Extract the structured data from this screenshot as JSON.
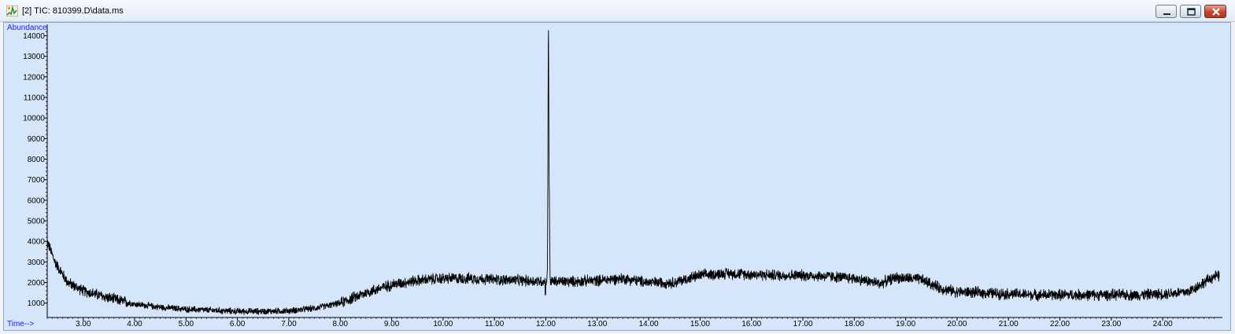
{
  "window": {
    "title": "[2] TIC: 810399.D\\data.ms",
    "icon": "chromatogram-app-icon",
    "buttons": [
      "minimize",
      "restore",
      "close"
    ]
  },
  "colors": {
    "plot_background": "#d6e6fa",
    "trace": "#000000",
    "axis_title": "#1a1aff"
  },
  "chart_data": {
    "type": "line",
    "ylabel": "Abundance",
    "xlabel": "Time-->",
    "xlim": [
      2.3,
      25.1
    ],
    "ylim": [
      300,
      14400
    ],
    "x_ticks": [
      "3.00",
      "4.00",
      "5.00",
      "6.00",
      "7.00",
      "8.00",
      "9.00",
      "10.00",
      "11.00",
      "12.00",
      "13.00",
      "14.00",
      "15.00",
      "16.00",
      "17.00",
      "18.00",
      "19.00",
      "20.00",
      "21.00",
      "22.00",
      "23.00",
      "24.00"
    ],
    "y_ticks": [
      "1000",
      "2000",
      "3000",
      "4000",
      "5000",
      "6000",
      "7000",
      "8000",
      "9000",
      "10000",
      "11000",
      "12000",
      "13000",
      "14000"
    ],
    "grid": false,
    "baseline": [
      [
        2.3,
        4000
      ],
      [
        2.45,
        3000
      ],
      [
        2.7,
        2000
      ],
      [
        3.0,
        1600
      ],
      [
        3.5,
        1250
      ],
      [
        4.0,
        950
      ],
      [
        4.5,
        800
      ],
      [
        5.0,
        700
      ],
      [
        5.5,
        650
      ],
      [
        6.0,
        600
      ],
      [
        6.5,
        600
      ],
      [
        7.0,
        620
      ],
      [
        7.5,
        750
      ],
      [
        8.0,
        1000
      ],
      [
        8.5,
        1500
      ],
      [
        9.0,
        1900
      ],
      [
        9.5,
        2100
      ],
      [
        10.0,
        2200
      ],
      [
        10.5,
        2200
      ],
      [
        11.0,
        2150
      ],
      [
        11.5,
        2100
      ],
      [
        12.0,
        2050
      ],
      [
        12.5,
        2050
      ],
      [
        13.0,
        2100
      ],
      [
        13.5,
        2200
      ],
      [
        14.0,
        2000
      ],
      [
        14.5,
        2000
      ],
      [
        15.0,
        2350
      ],
      [
        15.5,
        2450
      ],
      [
        16.0,
        2400
      ],
      [
        16.5,
        2350
      ],
      [
        17.0,
        2350
      ],
      [
        17.5,
        2300
      ],
      [
        18.0,
        2200
      ],
      [
        18.5,
        1950
      ],
      [
        18.8,
        2250
      ],
      [
        19.3,
        2150
      ],
      [
        19.7,
        1700
      ],
      [
        20.0,
        1550
      ],
      [
        20.5,
        1500
      ],
      [
        21.0,
        1450
      ],
      [
        21.5,
        1400
      ],
      [
        22.0,
        1400
      ],
      [
        22.5,
        1400
      ],
      [
        23.0,
        1400
      ],
      [
        23.5,
        1400
      ],
      [
        24.0,
        1450
      ],
      [
        24.5,
        1550
      ],
      [
        24.8,
        2000
      ],
      [
        25.0,
        2300
      ]
    ],
    "noise_amplitude": 550,
    "peaks": [
      {
        "rt": 12.05,
        "height": 14400,
        "width": 0.012
      },
      {
        "rt": 12.07,
        "height": 5000,
        "width": 0.008
      }
    ],
    "dips": [
      {
        "rt": 11.99,
        "value": 1400
      }
    ]
  }
}
